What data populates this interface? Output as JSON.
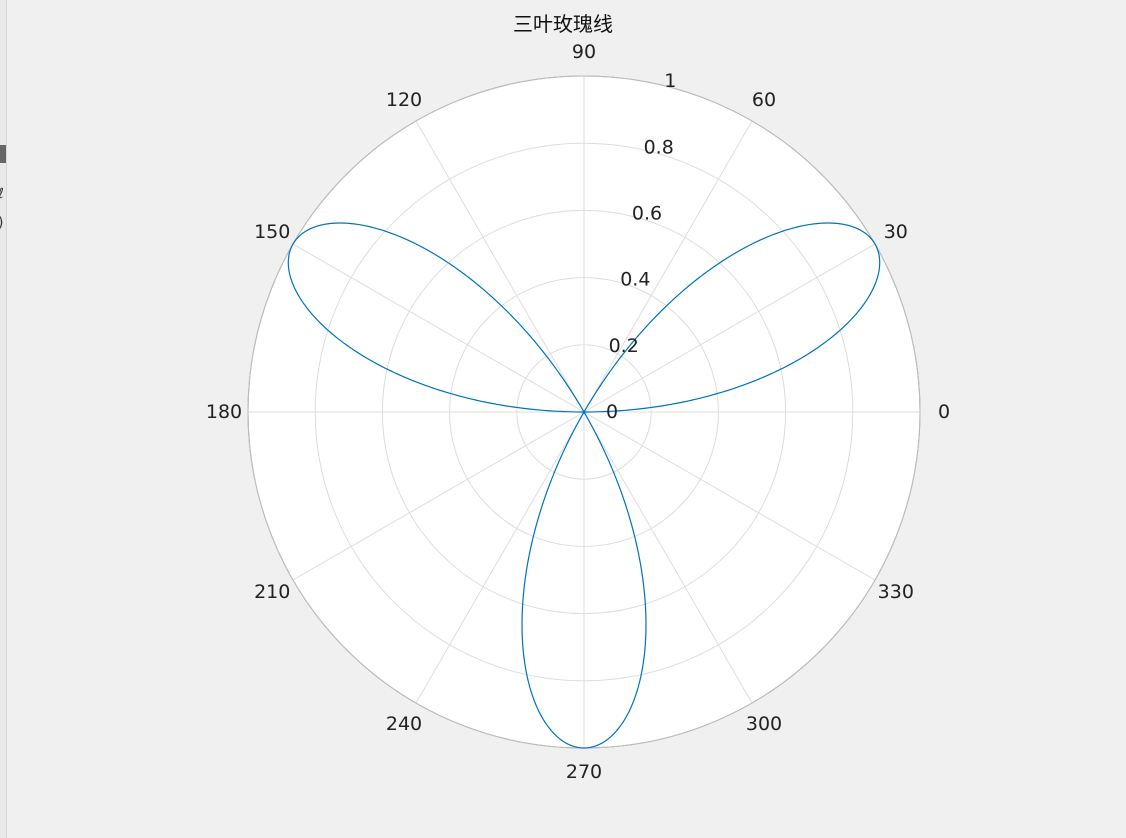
{
  "chart_data": {
    "type": "line",
    "title": "三叶玫瑰线",
    "coordinate_system": "polar",
    "series": [
      {
        "equation": "r = sin(3θ)",
        "theta_range_deg": [
          0,
          360
        ],
        "color": "#0072bd"
      }
    ],
    "angular_ticks": [
      "0",
      "30",
      "60",
      "90",
      "120",
      "150",
      "180",
      "210",
      "240",
      "270",
      "300",
      "330"
    ],
    "radial_ticks": [
      "0",
      "0.2",
      "0.4",
      "0.6",
      "0.8",
      "1"
    ],
    "rlim": [
      0,
      1
    ],
    "grid": true
  },
  "colors": {
    "background": "#f0f0f0",
    "plot_area": "#ffffff",
    "grid": "#dddddd",
    "outer_ring": "#bdbdbd",
    "line": "#0072bd"
  }
}
